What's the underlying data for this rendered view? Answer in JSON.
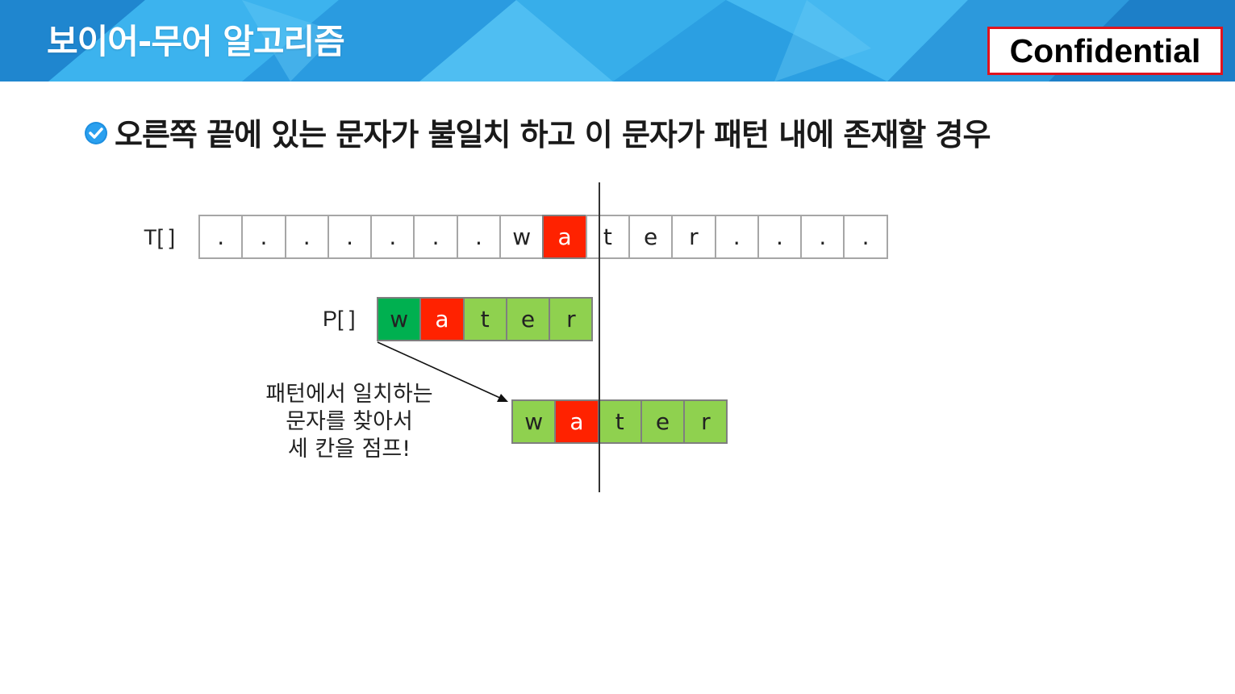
{
  "header": {
    "title": "보이어-무어 알고리즘",
    "confidential_label": "Confidential",
    "colors": {
      "banner": "#2fa6e6",
      "badge_border": "#e0141e"
    }
  },
  "bullet": {
    "icon": "check-circle-icon",
    "text": "오른쪽 끝에 있는 문자가 불일치 하고 이 문자가 패턴 내에 존재할 경우"
  },
  "text_array": {
    "label": "T[ ]",
    "cells": [
      ".",
      ".",
      ".",
      ".",
      ".",
      ".",
      ".",
      "w",
      "a",
      "t",
      "e",
      "r",
      ".",
      ".",
      ".",
      "."
    ],
    "mismatch_index": 8
  },
  "pattern_before": {
    "label": "P[ ]",
    "cells": [
      "w",
      "a",
      "t",
      "e",
      "r"
    ],
    "matched_index": 0,
    "mismatch_index": 1
  },
  "pattern_after": {
    "cells": [
      "w",
      "a",
      "t",
      "e",
      "r"
    ],
    "mismatch_index": 1
  },
  "annotation": {
    "lines": [
      "패턴에서 일치하는",
      "문자를 찾아서",
      "세 칸을 점프!"
    ]
  },
  "colors": {
    "mismatch": "#ff2200",
    "pattern": "#8fd14f",
    "matched": "#00b050",
    "cell_border": "#a6a6a6"
  }
}
